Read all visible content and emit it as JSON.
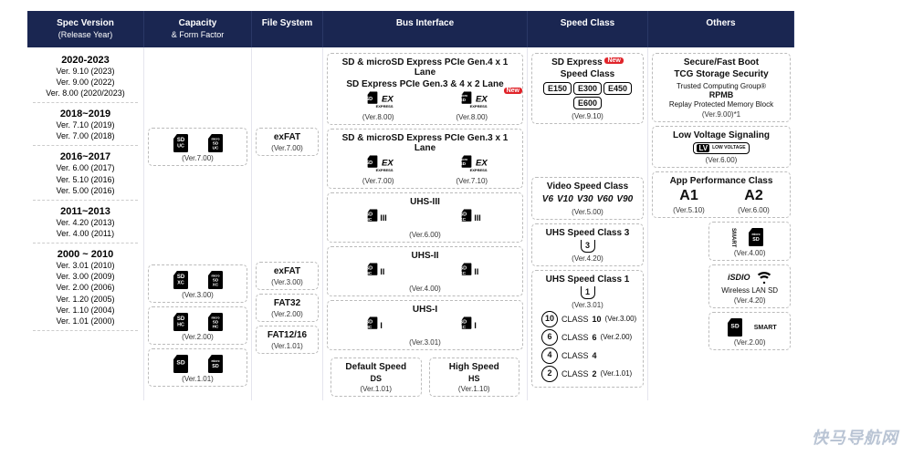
{
  "headers": {
    "spec": "Spec Version",
    "spec_sub": "(Release Year)",
    "cap": "Capacity",
    "cap_sub": "& Form Factor",
    "fs": "File System",
    "bus": "Bus Interface",
    "speed": "Speed Class",
    "other": "Others"
  },
  "spec": {
    "g1": {
      "range": "2020-2023",
      "rows": [
        "Ver. 9.10 (2023)",
        "Ver. 9.00 (2022)",
        "Ver. 8.00 (2020/2023)"
      ]
    },
    "g2": {
      "range": "2018~2019",
      "rows": [
        "Ver. 7.10 (2019)",
        "Ver. 7.00 (2018)"
      ]
    },
    "g3": {
      "range": "2016~2017",
      "rows": [
        "Ver. 6.00 (2017)",
        "Ver. 5.10 (2016)",
        "Ver. 5.00 (2016)"
      ]
    },
    "g4": {
      "range": "2011~2013",
      "rows": [
        "Ver. 4.20 (2013)",
        "Ver. 4.00 (2011)"
      ]
    },
    "g5": {
      "range": "2000 ~ 2010",
      "rows": [
        "Ver. 3.01 (2010)",
        "Ver. 3.00 (2009)",
        "Ver. 2.00 (2006)",
        "Ver. 1.20 (2005)",
        "Ver. 1.10 (2004)",
        "Ver. 1.01 (2000)"
      ]
    }
  },
  "cap": {
    "uc": {
      "ver": "(Ver.7.00)",
      "labels": [
        "SDUC",
        "microSDUC"
      ]
    },
    "xc": {
      "ver": "(Ver.3.00)",
      "labels": [
        "SDXC",
        "microSDXC"
      ]
    },
    "hc": {
      "ver": "(Ver.2.00)",
      "labels": [
        "SDHC",
        "microSDHC"
      ]
    },
    "sd": {
      "ver": "(Ver.1.01)",
      "labels": [
        "SD",
        "microSD"
      ]
    }
  },
  "fs": {
    "exfat7": {
      "name": "exFAT",
      "ver": "(Ver.7.00)"
    },
    "exfat3": {
      "name": "exFAT",
      "ver": "(Ver.3.00)"
    },
    "fat32": {
      "name": "FAT32",
      "ver": "(Ver.2.00)"
    },
    "fat12": {
      "name": "FAT12/16",
      "ver": "(Ver.1.01)"
    }
  },
  "bus": {
    "exp4": {
      "title": "SD & microSD Express PCIe Gen.4 x 1 Lane",
      "title2": "SD Express PCIe Gen.3 & 4 x 2 Lane",
      "sd_ver": "(Ver.8.00)",
      "msd_ver": "(Ver.8.00)",
      "new": "New"
    },
    "exp3": {
      "title": "SD & microSD Express  PCIe Gen.3 x 1 Lane",
      "sd_ver": "(Ver.7.00)",
      "msd_ver": "(Ver.7.10)"
    },
    "uhs3": {
      "title": "UHS-III",
      "ver": "(Ver.6.00)"
    },
    "uhs2": {
      "title": "UHS-II",
      "ver": "(Ver.4.00)"
    },
    "uhs1": {
      "title": "UHS-I",
      "ver": "(Ver.3.01)"
    },
    "default": {
      "t": "Default Speed",
      "sub": "DS",
      "ver": "(Ver.1.01)"
    },
    "high": {
      "t": "High Speed",
      "sub": "HS",
      "ver": "(Ver.1.10)"
    },
    "ex_label": "EX",
    "express_label": "EXPRESS"
  },
  "speed": {
    "express": {
      "title": "SD Express",
      "title2": "Speed Class",
      "new": "New",
      "badges": [
        "E150",
        "E300",
        "E450",
        "E600"
      ],
      "ver": "(Ver.9.10)"
    },
    "video": {
      "title": "Video Speed Class",
      "marks": [
        "V6",
        "V10",
        "V30",
        "V60",
        "V90"
      ],
      "ver": "(Ver.5.00)"
    },
    "uhs3": {
      "title": "UHS Speed Class 3",
      "mark": "3",
      "ver": "(Ver.4.20)"
    },
    "uhs1": {
      "title": "UHS Speed Class 1",
      "mark": "1",
      "ver": "(Ver.3.01)"
    },
    "classes": [
      {
        "n": "10",
        "v": "(Ver.3.00)"
      },
      {
        "n": "6",
        "v": "(Ver.2.00)"
      },
      {
        "n": "4",
        "v": ""
      },
      {
        "n": "2",
        "v": "(Ver.1.01)"
      }
    ],
    "class_label": "CLASS"
  },
  "other": {
    "secure": {
      "t1": "Secure/Fast Boot",
      "t2": "TCG Storage Security",
      "t3": "Trusted Computing Group®",
      "t4": "RPMB",
      "t5": "Replay Protected Memory Block",
      "ver": "(Ver.9.00)*1"
    },
    "lv": {
      "title": "Low Voltage Signaling",
      "lv": "LV",
      "sub": "LOW VOLTAGE",
      "ver": "(Ver.6.00)"
    },
    "app": {
      "title": "App Performance Class",
      "a1": "A1",
      "a2": "A2",
      "v1": "(Ver.5.10)",
      "v2": "(Ver.6.00)"
    },
    "smart_micro": {
      "ver": "(Ver.4.00)",
      "smart_label": "SMART"
    },
    "isdio": {
      "t": "iSDIO",
      "sub": "Wireless LAN SD",
      "ver": "(Ver.4.20)"
    },
    "smart_sd": {
      "ver": "(Ver.2.00)",
      "smart_label": "SMART"
    }
  },
  "watermark": "快马导航网",
  "colors": {
    "header_bg": "#1a2651",
    "new": "#e0242a"
  }
}
